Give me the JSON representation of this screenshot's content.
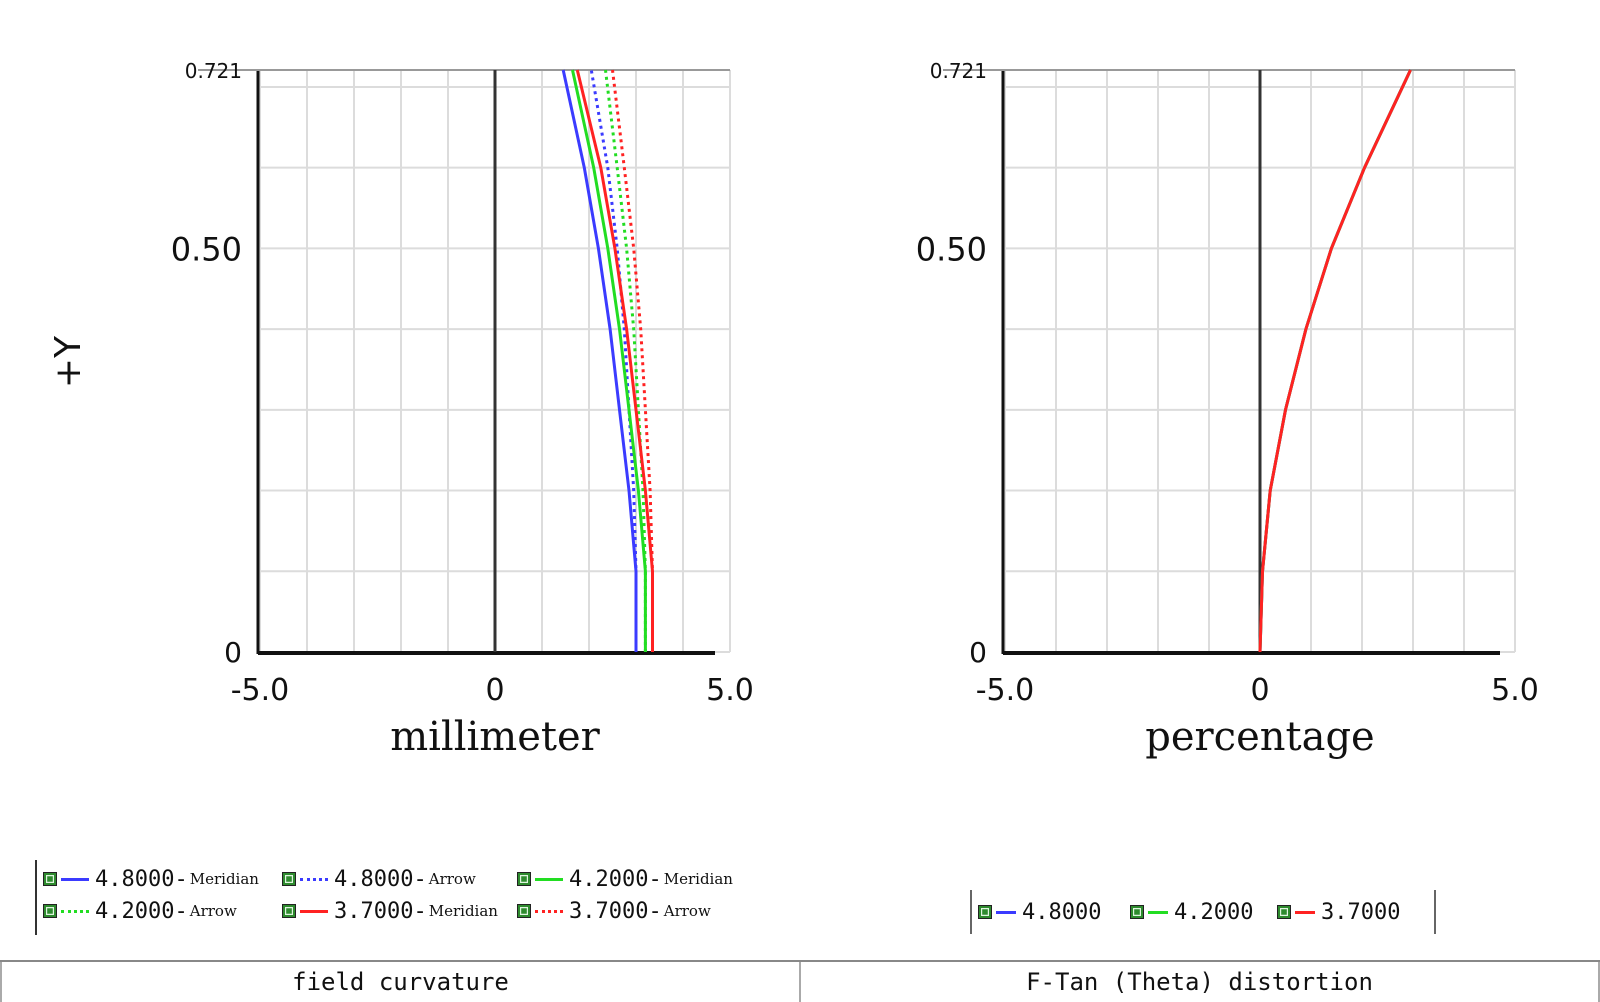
{
  "chart_data": [
    {
      "type": "line",
      "title": "field curvature",
      "xlabel": "millimeter",
      "ylabel": "+Y",
      "xlim": [
        -5.0,
        5.0
      ],
      "ylim": [
        0,
        0.721
      ],
      "xticks": [
        "-5.0",
        "0",
        "5.0"
      ],
      "yticks": [
        "0",
        "0.50",
        "0.721"
      ],
      "grid": true,
      "series": [
        {
          "name": "4.8000-Meridian",
          "color": "#3b3bff",
          "dash": "solid",
          "points": [
            [
              3.0,
              0
            ],
            [
              3.0,
              0.1
            ],
            [
              2.85,
              0.2
            ],
            [
              2.65,
              0.3
            ],
            [
              2.45,
              0.4
            ],
            [
              2.2,
              0.5
            ],
            [
              1.9,
              0.6
            ],
            [
              1.45,
              0.721
            ]
          ]
        },
        {
          "name": "4.8000-Arrow",
          "color": "#3b3bff",
          "dash": "dotted",
          "points": [
            [
              3.0,
              0
            ],
            [
              3.0,
              0.1
            ],
            [
              2.95,
              0.2
            ],
            [
              2.85,
              0.3
            ],
            [
              2.75,
              0.4
            ],
            [
              2.6,
              0.5
            ],
            [
              2.4,
              0.6
            ],
            [
              2.05,
              0.721
            ]
          ]
        },
        {
          "name": "4.2000-Meridian",
          "color": "#22dd22",
          "dash": "solid",
          "points": [
            [
              3.2,
              0
            ],
            [
              3.2,
              0.1
            ],
            [
              3.05,
              0.2
            ],
            [
              2.85,
              0.3
            ],
            [
              2.65,
              0.4
            ],
            [
              2.4,
              0.5
            ],
            [
              2.1,
              0.6
            ],
            [
              1.65,
              0.721
            ]
          ]
        },
        {
          "name": "4.2000-Arrow",
          "color": "#22dd22",
          "dash": "dotted",
          "points": [
            [
              3.2,
              0
            ],
            [
              3.2,
              0.1
            ],
            [
              3.15,
              0.2
            ],
            [
              3.05,
              0.3
            ],
            [
              2.95,
              0.4
            ],
            [
              2.8,
              0.5
            ],
            [
              2.6,
              0.6
            ],
            [
              2.35,
              0.721
            ]
          ]
        },
        {
          "name": "3.7000-Meridian",
          "color": "#ff2222",
          "dash": "solid",
          "points": [
            [
              3.35,
              0
            ],
            [
              3.35,
              0.1
            ],
            [
              3.2,
              0.2
            ],
            [
              3.0,
              0.3
            ],
            [
              2.8,
              0.4
            ],
            [
              2.55,
              0.5
            ],
            [
              2.25,
              0.6
            ],
            [
              1.75,
              0.721
            ]
          ]
        },
        {
          "name": "3.7000-Arrow",
          "color": "#ff2222",
          "dash": "dotted",
          "points": [
            [
              3.35,
              0
            ],
            [
              3.35,
              0.1
            ],
            [
              3.3,
              0.2
            ],
            [
              3.2,
              0.3
            ],
            [
              3.1,
              0.4
            ],
            [
              2.95,
              0.5
            ],
            [
              2.75,
              0.6
            ],
            [
              2.5,
              0.721
            ]
          ]
        }
      ]
    },
    {
      "type": "line",
      "title": "F-Tan (Theta) distortion",
      "xlabel": "percentage",
      "ylabel": "",
      "xlim": [
        -5.0,
        5.0
      ],
      "ylim": [
        0,
        0.721
      ],
      "xticks": [
        "-5.0",
        "0",
        "5.0"
      ],
      "yticks": [
        "0",
        "0.50",
        "0.721"
      ],
      "grid": true,
      "series": [
        {
          "name": "4.8000",
          "color": "#3b3bff",
          "dash": "solid",
          "points": [
            [
              0,
              0
            ],
            [
              0.05,
              0.1
            ],
            [
              0.2,
              0.2
            ],
            [
              0.5,
              0.3
            ],
            [
              0.9,
              0.4
            ],
            [
              1.4,
              0.5
            ],
            [
              2.05,
              0.6
            ],
            [
              2.95,
              0.721
            ]
          ]
        },
        {
          "name": "4.2000",
          "color": "#22dd22",
          "dash": "solid",
          "points": [
            [
              0,
              0
            ],
            [
              0.05,
              0.1
            ],
            [
              0.2,
              0.2
            ],
            [
              0.5,
              0.3
            ],
            [
              0.9,
              0.4
            ],
            [
              1.4,
              0.5
            ],
            [
              2.05,
              0.6
            ],
            [
              2.95,
              0.721
            ]
          ]
        },
        {
          "name": "3.7000",
          "color": "#ff2222",
          "dash": "solid",
          "points": [
            [
              0,
              0
            ],
            [
              0.05,
              0.1
            ],
            [
              0.2,
              0.2
            ],
            [
              0.5,
              0.3
            ],
            [
              0.9,
              0.4
            ],
            [
              1.4,
              0.5
            ],
            [
              2.05,
              0.6
            ],
            [
              2.95,
              0.721
            ]
          ]
        }
      ]
    }
  ],
  "legends": {
    "left": [
      {
        "value": "4.8000",
        "sep": "-",
        "kind": "Meridian",
        "color": "#3b3bff",
        "dash": "solid"
      },
      {
        "value": "4.8000",
        "sep": "-",
        "kind": "Arrow",
        "color": "#3b3bff",
        "dash": "dotted"
      },
      {
        "value": "4.2000",
        "sep": "-",
        "kind": " Meridian",
        "color": "#22dd22",
        "dash": "solid"
      },
      {
        "value": "4.2000",
        "sep": "-",
        "kind": "Arrow",
        "color": "#22dd22",
        "dash": "dotted"
      },
      {
        "value": "3.7000",
        "sep": "-",
        "kind": "Meridian",
        "color": "#ff2222",
        "dash": "solid"
      },
      {
        "value": "3.7000",
        "sep": "-",
        "kind": " Arrow",
        "color": "#ff2222",
        "dash": "dotted"
      }
    ],
    "right": [
      {
        "value": "4.8000",
        "color": "#3b3bff"
      },
      {
        "value": "4.2000",
        "color": "#22dd22"
      },
      {
        "value": "3.7000",
        "color": "#ff2222"
      }
    ]
  },
  "footer": {
    "left": "field curvature",
    "right": "F-Tan (Theta) distortion"
  }
}
